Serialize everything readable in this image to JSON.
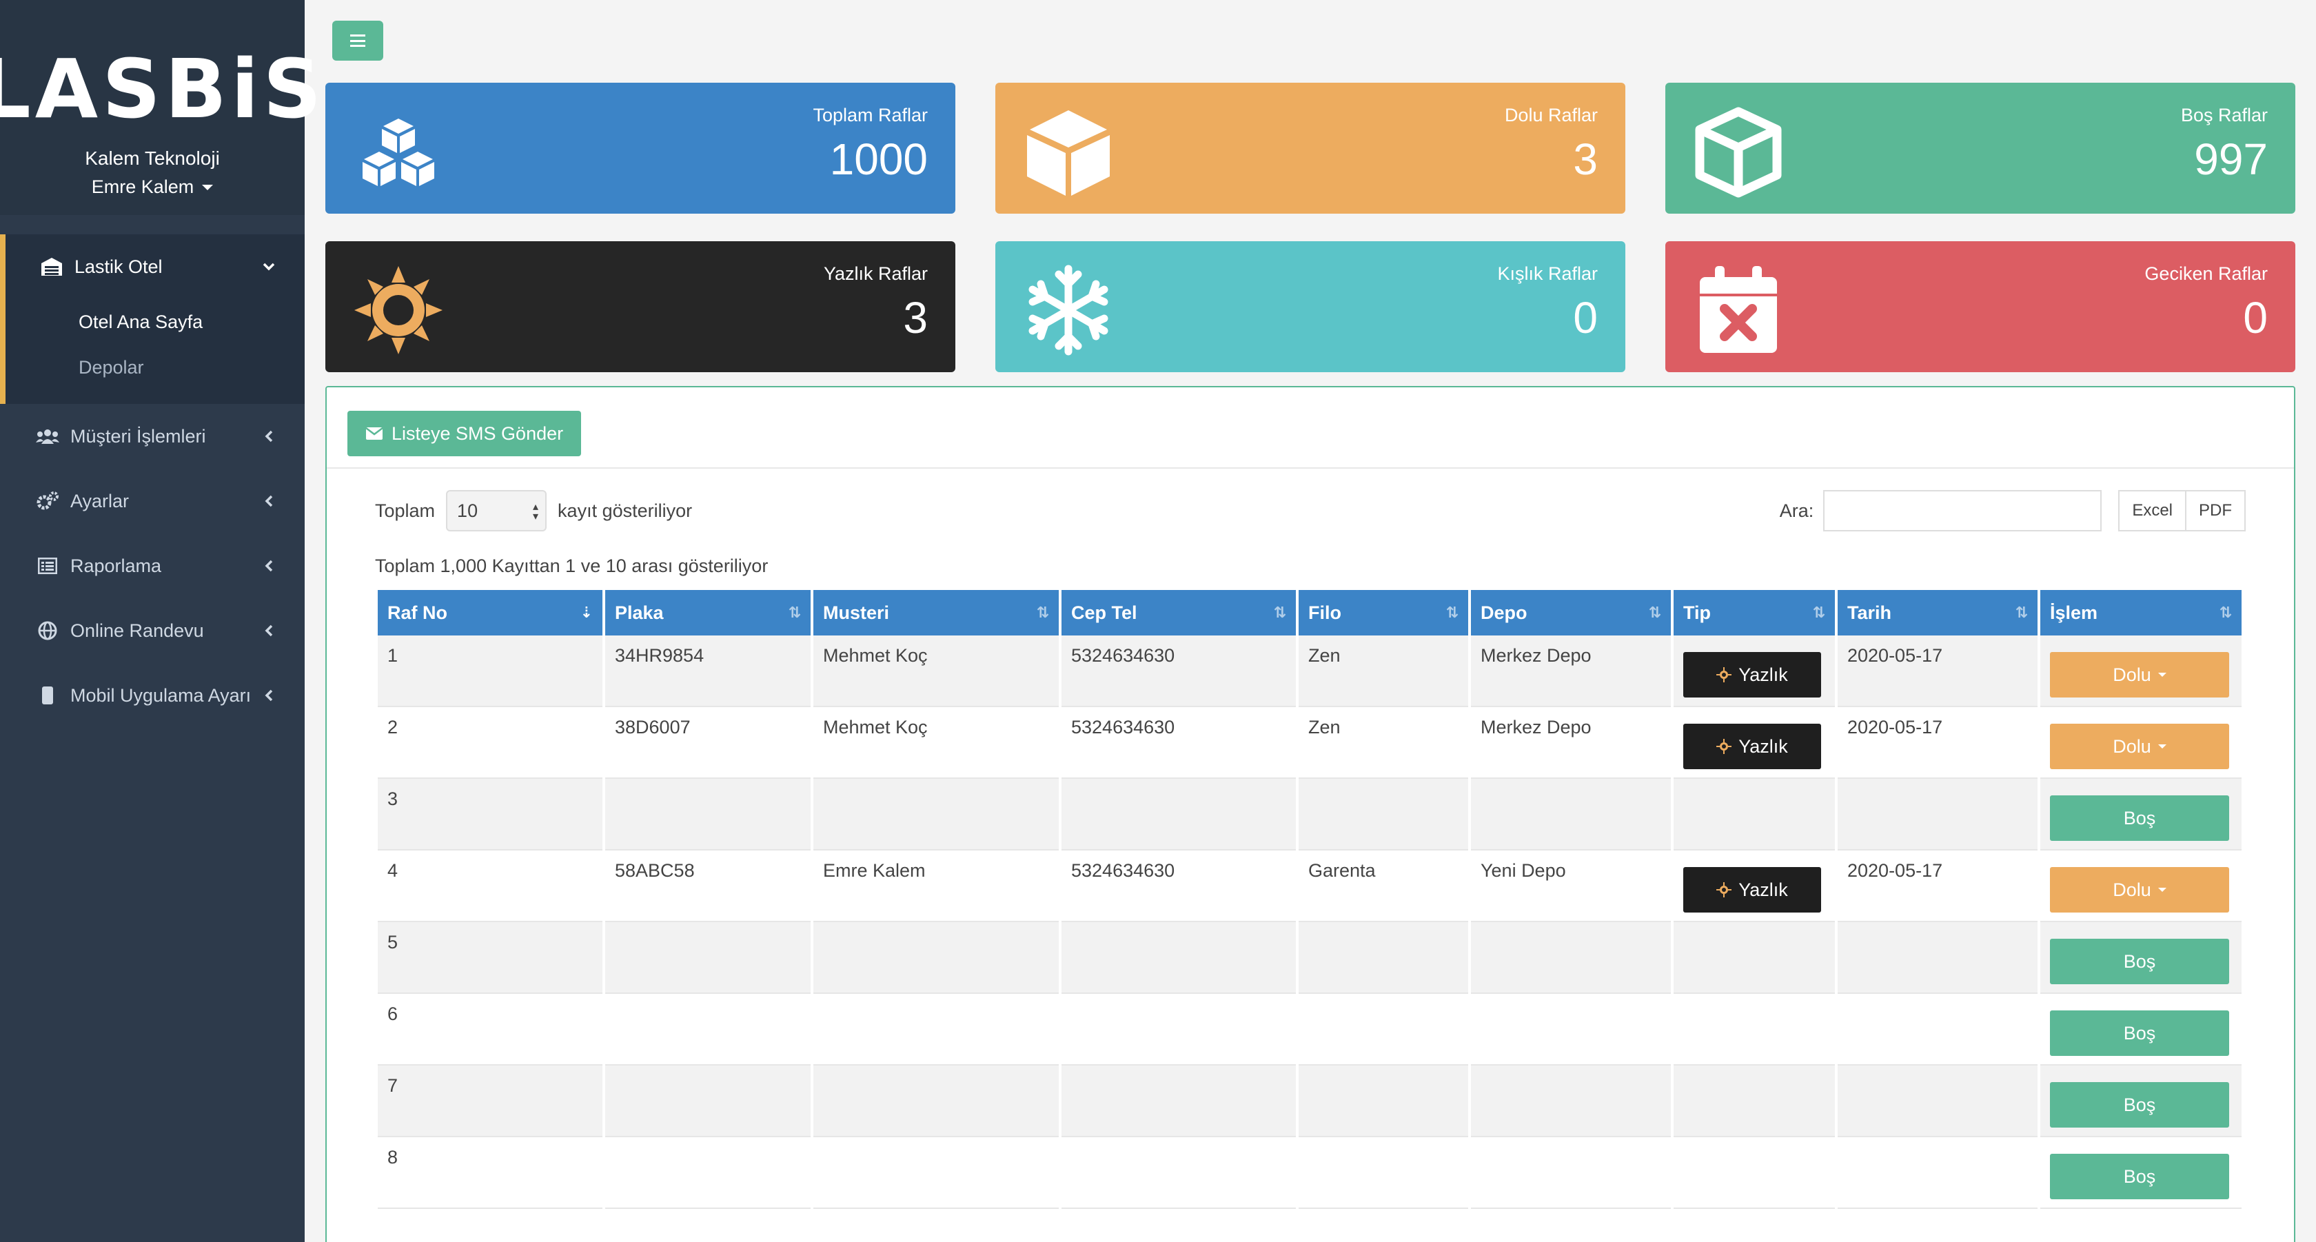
{
  "sidebar": {
    "logo": "LASBiS",
    "company": "Kalem Teknoloji",
    "user": "Emre Kalem",
    "active_section": "Lastik Otel",
    "submenu": [
      "Otel Ana Sayfa",
      "Depolar"
    ],
    "items": [
      "Müşteri İşlemleri",
      "Ayarlar",
      "Raporlama",
      "Online Randevu",
      "Mobil Uygulama Ayarı"
    ]
  },
  "stats": [
    {
      "label": "Toplam Raflar",
      "value": "1000",
      "color": "#3c84c7",
      "icon": "cubes-icon"
    },
    {
      "label": "Dolu Raflar",
      "value": "3",
      "color": "#edac5f",
      "icon": "cube-icon"
    },
    {
      "label": "Boş Raflar",
      "value": "997",
      "color": "#5bb896",
      "icon": "open-box-icon"
    },
    {
      "label": "Yazlık Raflar",
      "value": "3",
      "color": "#262626",
      "icon": "sun-icon"
    },
    {
      "label": "Kışlık Raflar",
      "value": "0",
      "color": "#5bc4c8",
      "icon": "snowflake-icon"
    },
    {
      "label": "Geciken Raflar",
      "value": "0",
      "color": "#dc5d63",
      "icon": "calendar-x-icon"
    }
  ],
  "panel": {
    "sms_button": "Listeye SMS Gönder",
    "length_prefix": "Toplam",
    "length_value": "10",
    "length_suffix": "kayıt gösteriliyor",
    "search_label": "Ara:",
    "export_buttons": [
      "Excel",
      "PDF"
    ],
    "info": "Toplam 1,000 Kayıttan 1 ve 10 arası gösteriliyor"
  },
  "table": {
    "columns": [
      "Raf No",
      "Plaka",
      "Musteri",
      "Cep Tel",
      "Filo",
      "Depo",
      "Tip",
      "Tarih",
      "İşlem"
    ],
    "rows": [
      {
        "raf": "1",
        "plaka": "34HR9854",
        "musteri": "Mehmet Koç",
        "tel": "5324634630",
        "filo": "Zen",
        "depo": "Merkez Depo",
        "tip": "Yazlık",
        "tarih": "2020-05-17",
        "islem": "Dolu"
      },
      {
        "raf": "2",
        "plaka": "38D6007",
        "musteri": "Mehmet Koç",
        "tel": "5324634630",
        "filo": "Zen",
        "depo": "Merkez Depo",
        "tip": "Yazlık",
        "tarih": "2020-05-17",
        "islem": "Dolu"
      },
      {
        "raf": "3",
        "plaka": "",
        "musteri": "",
        "tel": "",
        "filo": "",
        "depo": "",
        "tip": "",
        "tarih": "",
        "islem": "Boş"
      },
      {
        "raf": "4",
        "plaka": "58ABC58",
        "musteri": "Emre Kalem",
        "tel": "5324634630",
        "filo": "Garenta",
        "depo": "Yeni Depo",
        "tip": "Yazlık",
        "tarih": "2020-05-17",
        "islem": "Dolu"
      },
      {
        "raf": "5",
        "plaka": "",
        "musteri": "",
        "tel": "",
        "filo": "",
        "depo": "",
        "tip": "",
        "tarih": "",
        "islem": "Boş"
      },
      {
        "raf": "6",
        "plaka": "",
        "musteri": "",
        "tel": "",
        "filo": "",
        "depo": "",
        "tip": "",
        "tarih": "",
        "islem": "Boş"
      },
      {
        "raf": "7",
        "plaka": "",
        "musteri": "",
        "tel": "",
        "filo": "",
        "depo": "",
        "tip": "",
        "tarih": "",
        "islem": "Boş"
      },
      {
        "raf": "8",
        "plaka": "",
        "musteri": "",
        "tel": "",
        "filo": "",
        "depo": "",
        "tip": "",
        "tarih": "",
        "islem": "Boş"
      }
    ]
  }
}
